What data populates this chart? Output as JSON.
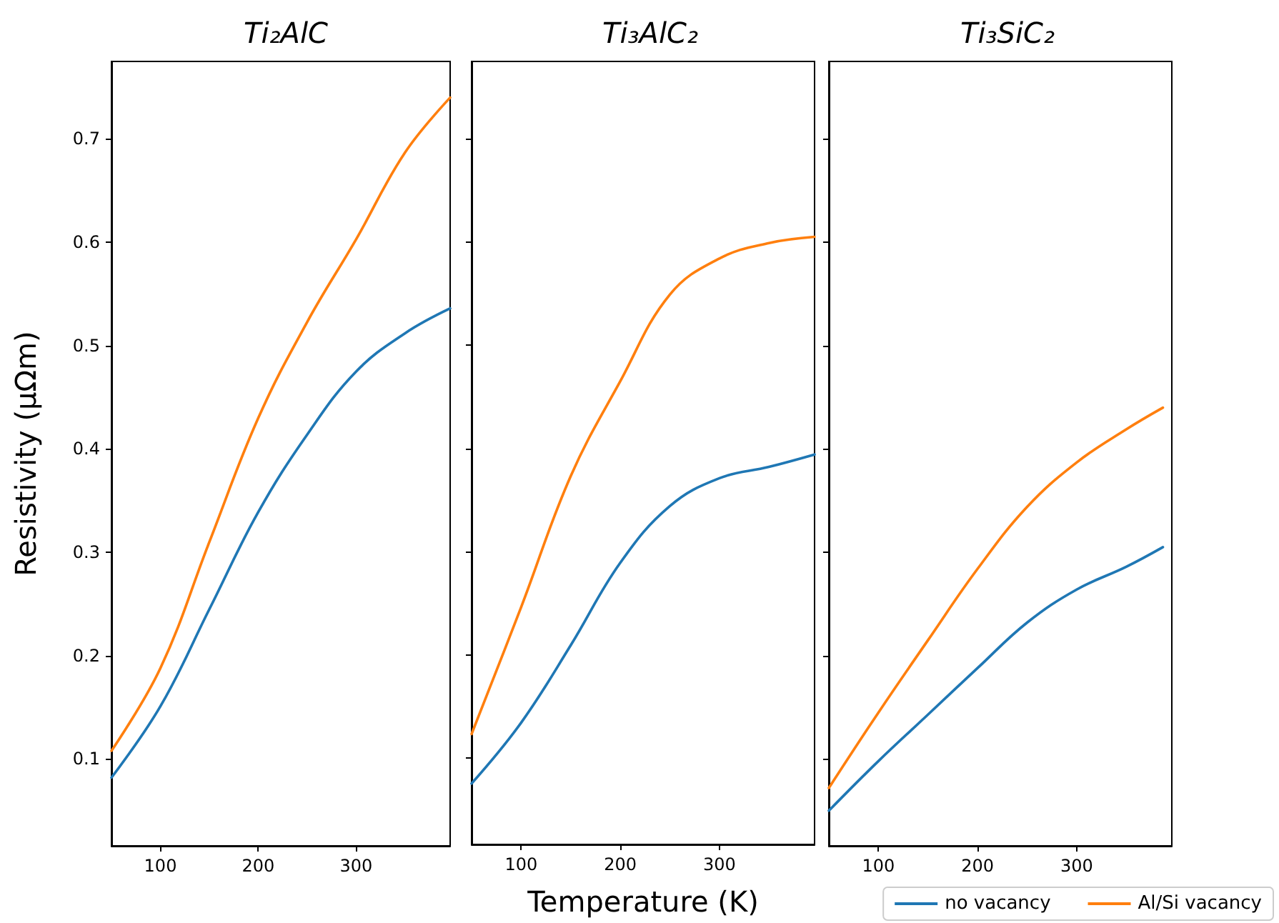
{
  "chart_data": [
    {
      "type": "line",
      "title": "Ti₂AlC",
      "ylabel": "Resistivity (μΩm)",
      "x": [
        50,
        100,
        150,
        200,
        250,
        300,
        350,
        396
      ],
      "xlim": [
        50,
        396
      ],
      "xticks": [
        100,
        200,
        300
      ],
      "ylim": [
        0.016,
        0.775
      ],
      "yticks": [
        0.1,
        0.2,
        0.3,
        0.4,
        0.5,
        0.6,
        0.7
      ],
      "grid": false,
      "marker": "none",
      "line_style": "solid",
      "series": [
        {
          "color": "#1f77b4",
          "values": [
            0.082,
            0.151,
            0.245,
            0.339,
            0.414,
            0.475,
            0.512,
            0.536
          ]
        },
        {
          "color": "#ff7f0e",
          "values": [
            0.108,
            0.188,
            0.31,
            0.43,
            0.523,
            0.603,
            0.687,
            0.74
          ]
        }
      ]
    },
    {
      "type": "line",
      "title": "Ti₃AlC₂",
      "xlabel": "Temperature (K)",
      "x": [
        50,
        100,
        150,
        200,
        250,
        300,
        350,
        396
      ],
      "xlim": [
        50,
        396
      ],
      "xticks": [
        100,
        200,
        300
      ],
      "ylim": [
        0.016,
        0.775
      ],
      "yticks": [
        0.1,
        0.2,
        0.3,
        0.4,
        0.5,
        0.6,
        0.7
      ],
      "tick_labels": "x",
      "grid": false,
      "marker": "none",
      "line_style": "solid",
      "series": [
        {
          "color": "#1f77b4",
          "values": [
            0.075,
            0.134,
            0.209,
            0.289,
            0.344,
            0.371,
            0.382,
            0.394
          ]
        },
        {
          "color": "#ff7f0e",
          "values": [
            0.123,
            0.246,
            0.373,
            0.465,
            0.549,
            0.584,
            0.599,
            0.605
          ]
        }
      ]
    },
    {
      "type": "line",
      "title": "Ti₃SiC₂",
      "x": [
        50,
        100,
        150,
        200,
        250,
        300,
        350,
        387
      ],
      "xlim": [
        50,
        396
      ],
      "xticks": [
        100,
        200,
        300
      ],
      "ylim": [
        0.016,
        0.775
      ],
      "yticks": [
        0.1,
        0.2,
        0.3,
        0.4,
        0.5,
        0.6,
        0.7
      ],
      "tick_labels": "x",
      "grid": false,
      "marker": "none",
      "line_style": "solid",
      "legend": "bottom right",
      "series": [
        {
          "name": "no vacancy",
          "color": "#1f77b4",
          "values": [
            0.05,
            0.098,
            0.143,
            0.188,
            0.232,
            0.264,
            0.286,
            0.305
          ]
        },
        {
          "name": "Al/Si vacancy",
          "color": "#ff7f0e",
          "values": [
            0.072,
            0.145,
            0.215,
            0.284,
            0.344,
            0.387,
            0.419,
            0.44
          ]
        }
      ]
    }
  ]
}
